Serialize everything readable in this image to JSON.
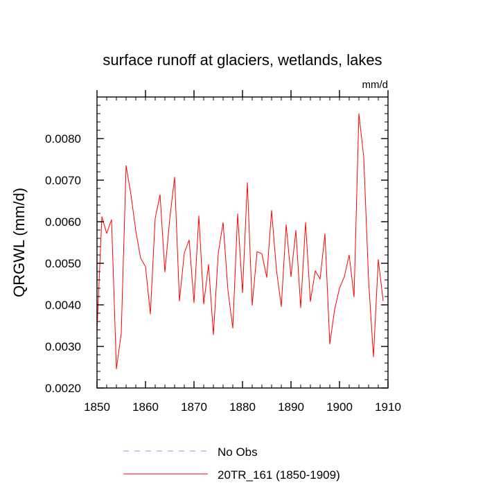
{
  "chart_data": {
    "type": "line",
    "title": "surface runoff at glaciers, wetlands, lakes",
    "units": "mm/d",
    "xlabel": "",
    "ylabel": "QRGWL  (mm/d)",
    "xlim": [
      1850,
      1910
    ],
    "ylim": [
      0.002,
      0.009
    ],
    "x_ticks": [
      1850,
      1860,
      1870,
      1880,
      1890,
      1900,
      1910
    ],
    "y_ticks": [
      0.002,
      0.003,
      0.004,
      0.005,
      0.006,
      0.007,
      0.008
    ],
    "x_tick_labels": [
      "1850",
      "1860",
      "1870",
      "1880",
      "1890",
      "1900",
      "1910"
    ],
    "y_tick_labels": [
      "0.0020",
      "0.0030",
      "0.0040",
      "0.0050",
      "0.0060",
      "0.0070",
      "0.0080"
    ],
    "grid": false,
    "legend_position": "bottom-left",
    "series": [
      {
        "name": "No Obs",
        "style": "dashed",
        "color": "#8a8aff",
        "x": [],
        "values": []
      },
      {
        "name": "20TR_161 (1850-1909)",
        "style": "solid",
        "color": "#ff0000",
        "x": [
          1850,
          1851,
          1852,
          1853,
          1854,
          1855,
          1856,
          1857,
          1858,
          1859,
          1860,
          1861,
          1862,
          1863,
          1864,
          1865,
          1866,
          1867,
          1868,
          1869,
          1870,
          1871,
          1872,
          1873,
          1874,
          1875,
          1876,
          1877,
          1878,
          1879,
          1880,
          1881,
          1882,
          1883,
          1884,
          1885,
          1886,
          1887,
          1888,
          1889,
          1890,
          1891,
          1892,
          1893,
          1894,
          1895,
          1896,
          1897,
          1898,
          1899,
          1900,
          1901,
          1902,
          1903,
          1904,
          1905,
          1906,
          1907,
          1908,
          1909
        ],
        "values": [
          0.00337,
          0.00612,
          0.00572,
          0.00605,
          0.00246,
          0.00332,
          0.00735,
          0.00665,
          0.00578,
          0.00512,
          0.00492,
          0.00378,
          0.00608,
          0.00665,
          0.00479,
          0.00607,
          0.00707,
          0.00409,
          0.00525,
          0.00556,
          0.00405,
          0.00614,
          0.00402,
          0.00497,
          0.00328,
          0.00524,
          0.00598,
          0.00435,
          0.00344,
          0.00619,
          0.00429,
          0.00694,
          0.00399,
          0.00528,
          0.00523,
          0.00466,
          0.00627,
          0.00484,
          0.00396,
          0.00593,
          0.00468,
          0.00579,
          0.00393,
          0.00598,
          0.00408,
          0.00482,
          0.00462,
          0.00571,
          0.00306,
          0.00389,
          0.0044,
          0.00468,
          0.0052,
          0.00419,
          0.0086,
          0.00755,
          0.00458,
          0.00275,
          0.00509,
          0.00409
        ]
      }
    ]
  }
}
